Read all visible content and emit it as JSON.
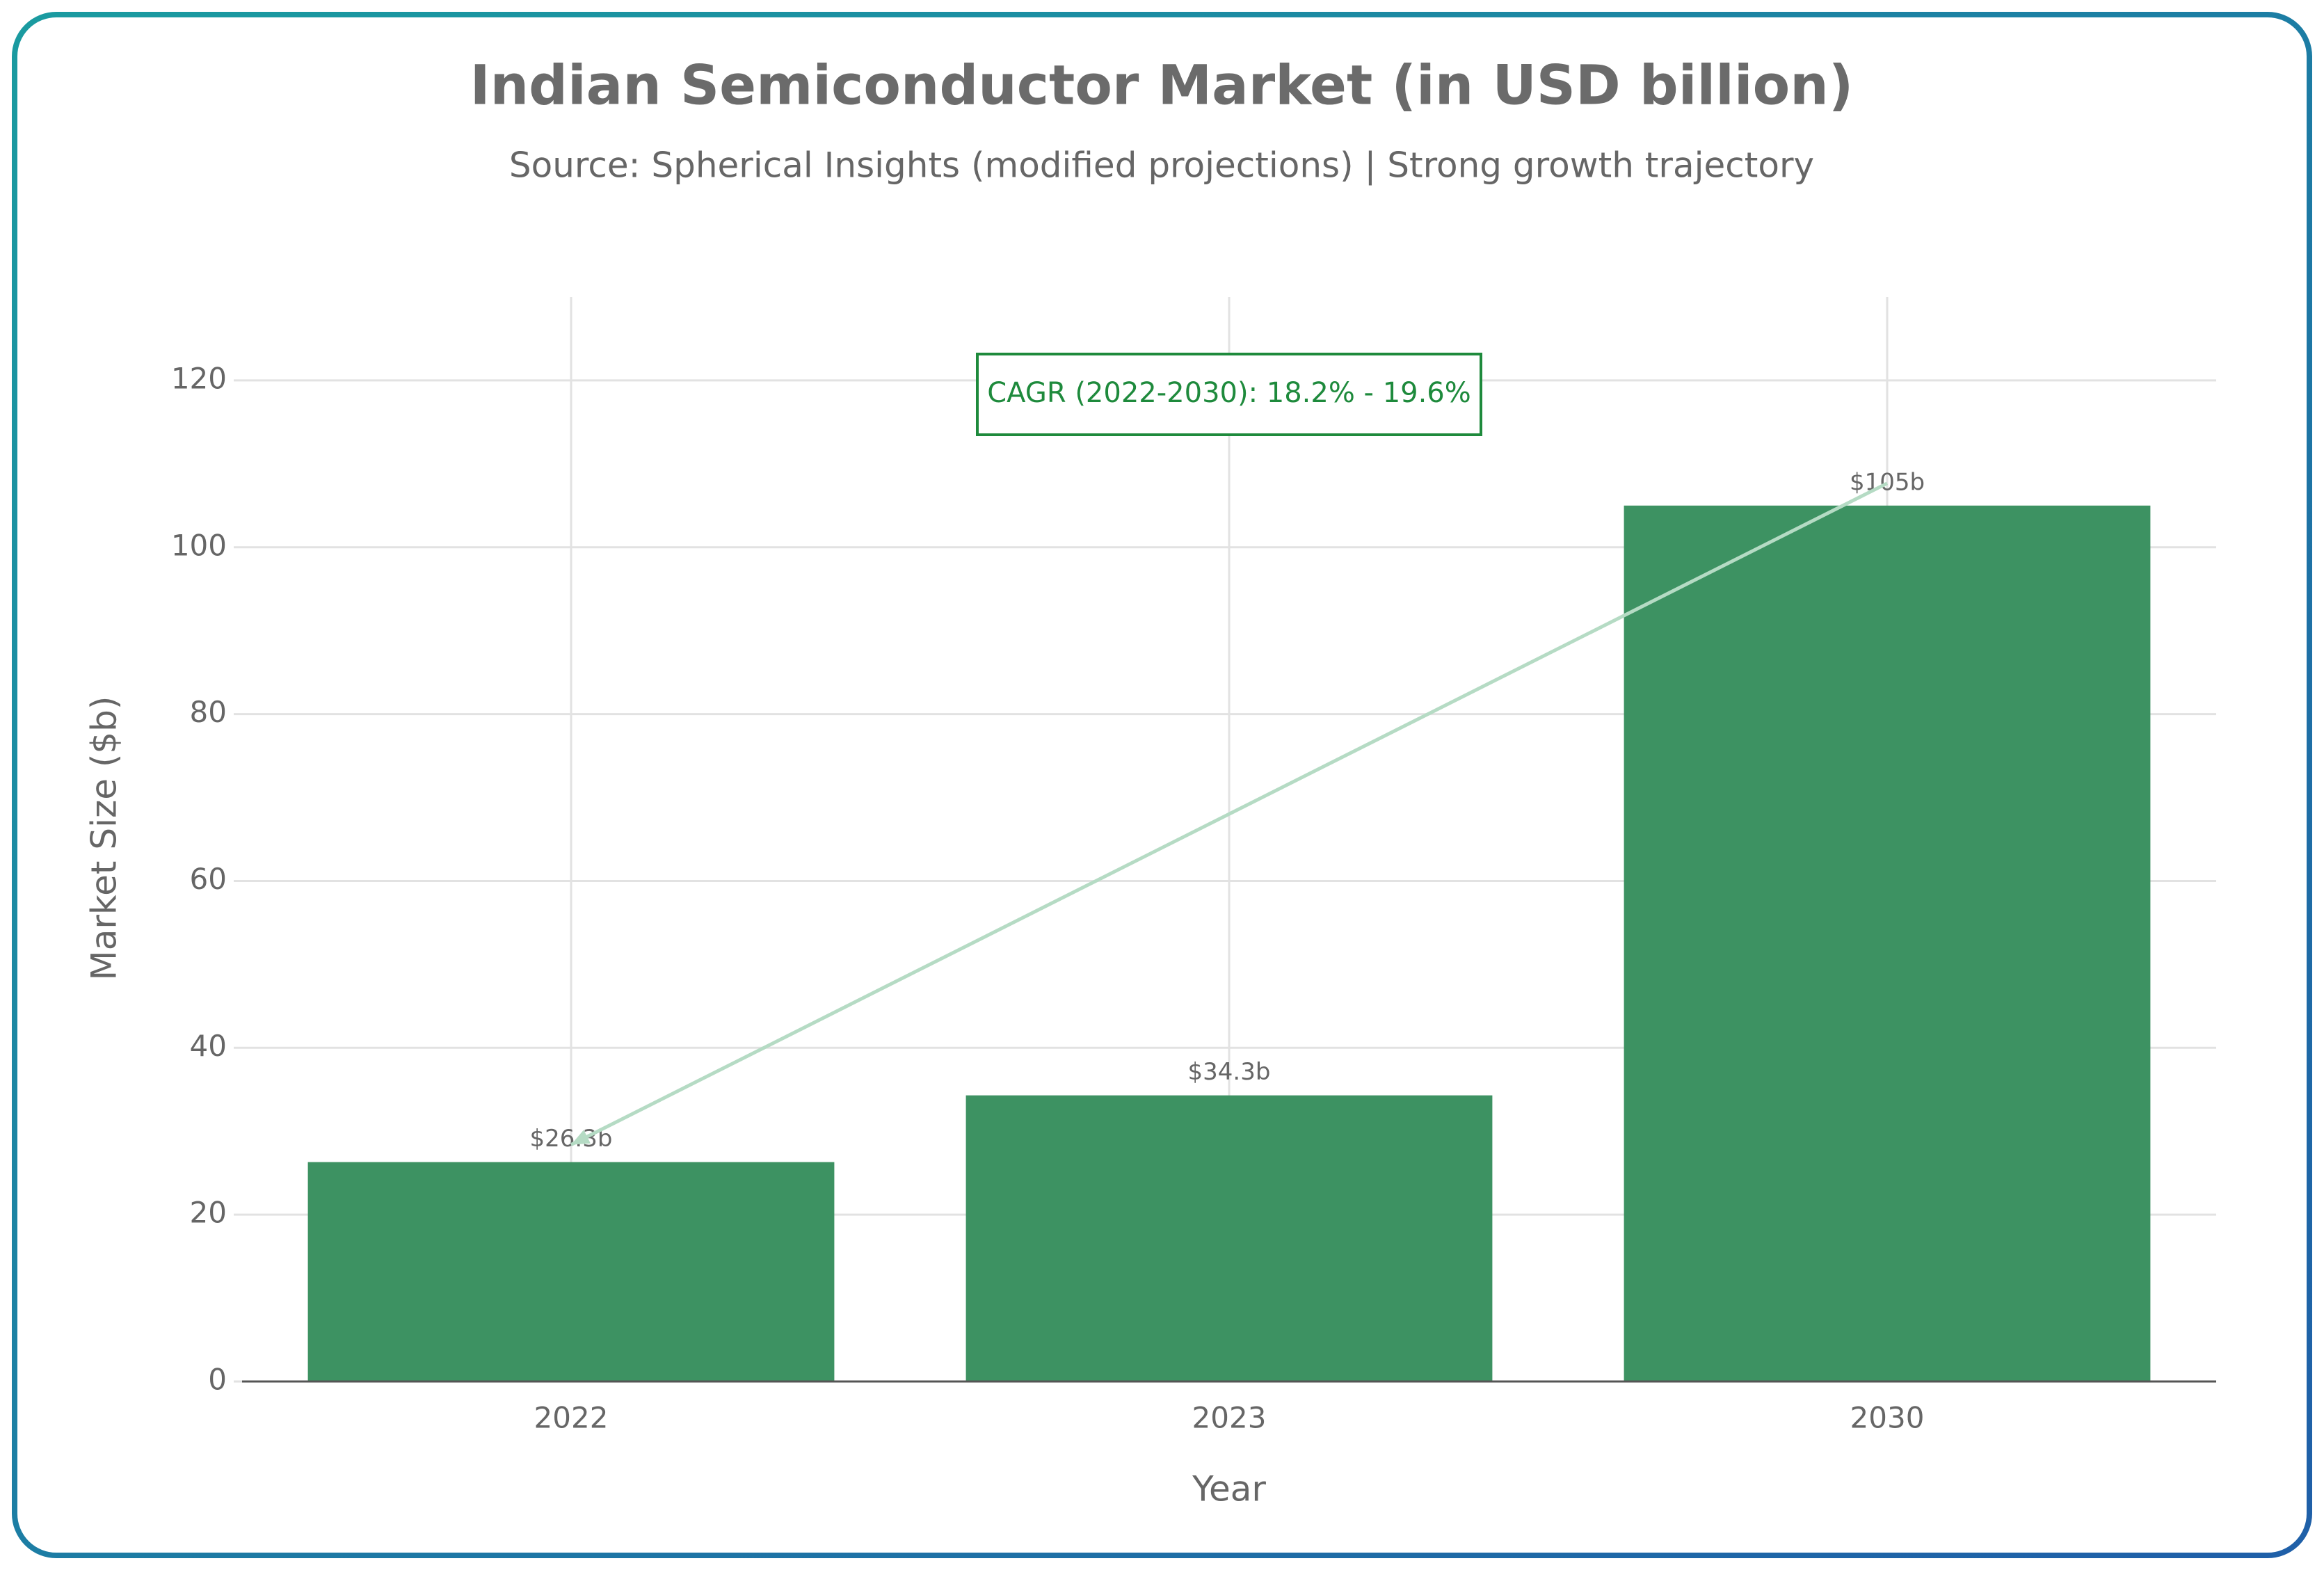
{
  "chart_data": {
    "type": "bar",
    "title": "Indian Semiconductor Market (in USD billion)",
    "subtitle": "Source: Spherical Insights (modified projections) | Strong growth trajectory",
    "x_label": "Year",
    "y_label": "Market Size ($b)",
    "categories": [
      "2022",
      "2023",
      "2030"
    ],
    "values": [
      26.3,
      34.3,
      105
    ],
    "value_labels": [
      "$26.3b",
      "$34.3b",
      "$105b"
    ],
    "color": "#3d9262",
    "annotation": "CAGR (2022-2030): 18.2% - 19.6%",
    "ylim": [
      0,
      130
    ],
    "yticks": [
      0,
      20,
      40,
      60,
      80,
      100,
      120
    ],
    "grid": true
  }
}
